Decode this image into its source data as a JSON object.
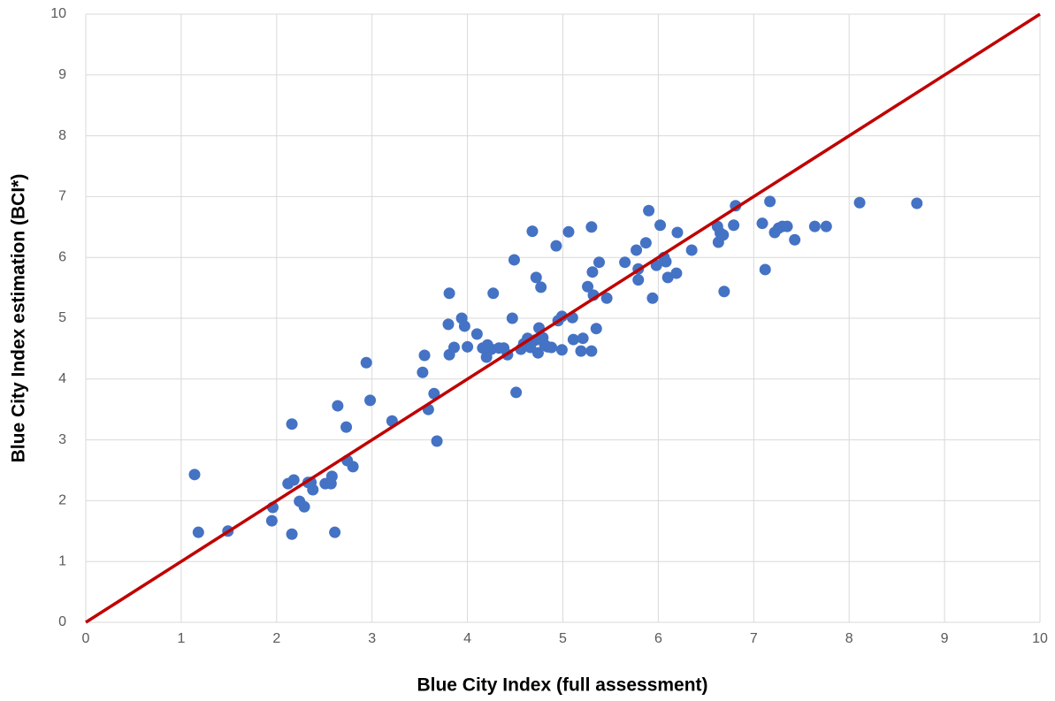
{
  "chart_data": {
    "type": "scatter",
    "x_label": "Blue City Index (full assessment)",
    "y_label": "Blue City Index estimation (BCI*)",
    "series": [
      {
        "color": "#4472c4",
        "x": [
          1.14,
          1.18,
          1.49,
          1.95,
          1.96,
          2.16,
          2.16,
          2.12,
          2.18,
          2.24,
          2.29,
          2.33,
          2.36,
          2.38,
          2.51,
          2.57,
          2.58,
          2.61,
          2.64,
          2.73,
          2.74,
          2.8,
          2.94,
          2.98,
          3.21,
          3.53,
          3.55,
          3.59,
          3.65,
          3.68,
          3.8,
          3.81,
          3.81,
          3.86,
          3.94,
          3.97,
          4.0,
          4.1,
          4.16,
          4.2,
          4.21,
          4.25,
          4.27,
          4.33,
          4.38,
          4.42,
          4.47,
          4.49,
          4.51,
          4.56,
          4.59,
          4.63,
          4.66,
          4.68,
          4.71,
          4.72,
          4.74,
          4.75,
          4.77,
          4.79,
          4.81,
          4.84,
          4.88,
          4.93,
          4.95,
          4.99,
          4.99,
          5.06,
          5.1,
          5.11,
          5.19,
          5.21,
          5.26,
          5.3,
          5.3,
          5.31,
          5.32,
          5.35,
          5.38,
          5.46,
          5.65,
          5.77,
          5.79,
          5.79,
          5.87,
          5.9,
          5.94,
          5.98,
          6.02,
          6.06,
          6.08,
          6.1,
          6.19,
          6.2,
          6.35,
          6.62,
          6.63,
          6.65,
          6.68,
          6.69,
          6.79,
          6.81,
          7.09,
          7.12,
          7.17,
          7.22,
          7.26,
          7.3,
          7.35,
          7.43,
          7.64,
          7.76,
          8.11,
          8.71
        ],
        "values": [
          2.43,
          1.48,
          1.5,
          1.67,
          1.89,
          3.26,
          1.45,
          2.28,
          2.34,
          1.99,
          1.9,
          2.3,
          2.3,
          2.18,
          2.28,
          2.28,
          2.4,
          1.48,
          3.56,
          3.21,
          2.66,
          2.56,
          4.27,
          3.65,
          3.31,
          4.11,
          4.39,
          3.5,
          3.76,
          2.98,
          4.9,
          5.41,
          4.4,
          4.52,
          5.0,
          4.87,
          4.53,
          4.74,
          4.51,
          4.36,
          4.56,
          4.49,
          5.41,
          4.51,
          4.51,
          4.4,
          5.0,
          5.96,
          3.78,
          4.49,
          4.58,
          4.67,
          4.52,
          6.43,
          4.64,
          5.67,
          4.43,
          4.84,
          5.51,
          4.68,
          4.56,
          4.53,
          4.52,
          6.19,
          4.96,
          5.03,
          4.48,
          6.42,
          5.01,
          4.65,
          4.46,
          4.67,
          5.52,
          4.46,
          6.5,
          5.76,
          5.38,
          4.83,
          5.92,
          5.33,
          5.92,
          6.12,
          5.81,
          5.63,
          6.24,
          6.77,
          5.33,
          5.87,
          6.53,
          6.0,
          5.93,
          5.67,
          5.74,
          6.41,
          6.12,
          6.51,
          6.25,
          6.4,
          6.37,
          5.44,
          6.53,
          6.85,
          6.56,
          5.8,
          6.92,
          6.41,
          6.48,
          6.51,
          6.51,
          6.29,
          6.51,
          6.51,
          6.9,
          6.89
        ]
      }
    ],
    "reference_line": {
      "x": [
        0,
        10
      ],
      "y": [
        0,
        10
      ],
      "color": "#c00000"
    },
    "xlim": [
      0,
      10
    ],
    "ylim": [
      0,
      10
    ],
    "xticks": [
      0,
      1,
      2,
      3,
      4,
      5,
      6,
      7,
      8,
      9,
      10
    ],
    "yticks": [
      0,
      1,
      2,
      3,
      4,
      5,
      6,
      7,
      8,
      9,
      10
    ],
    "grid": true
  }
}
